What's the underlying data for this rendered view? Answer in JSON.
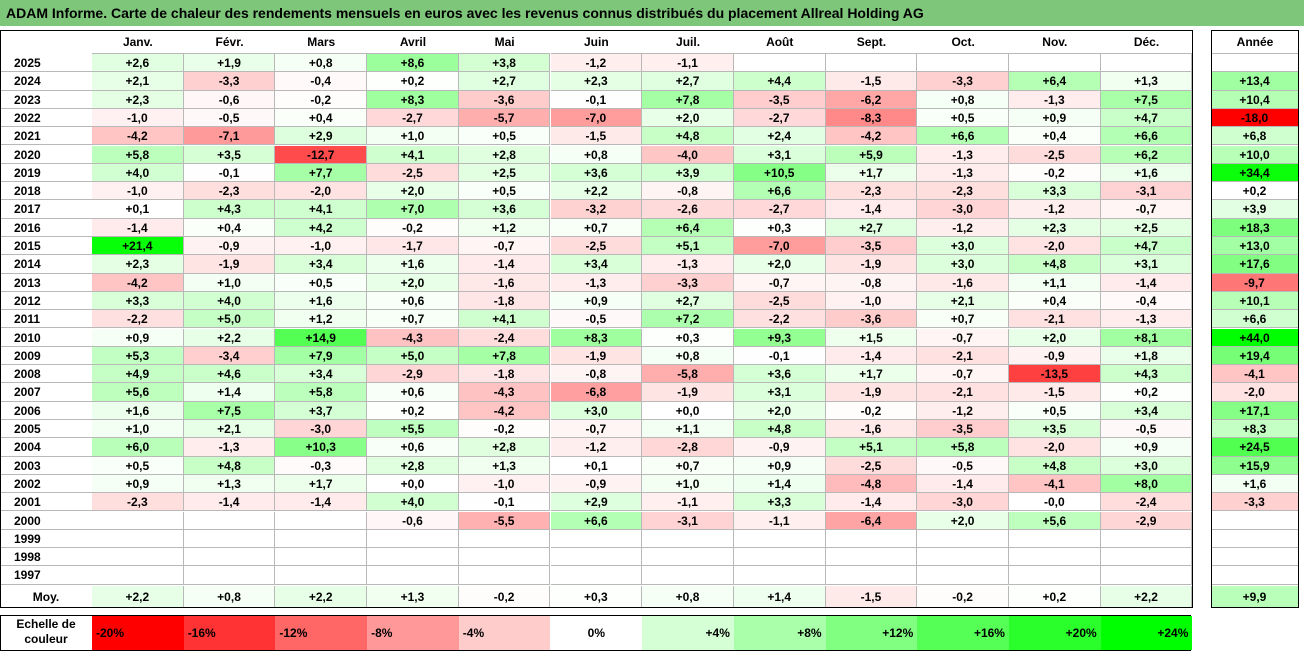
{
  "title": "ADAM Informe. Carte de chaleur des rendements mensuels en euros avec les revenus connus distribués du placement Allreal Holding AG",
  "months": [
    "Janv.",
    "Févr.",
    "Mars",
    "Avril",
    "Mai",
    "Juin",
    "Juil.",
    "Août",
    "Sept.",
    "Oct.",
    "Nov.",
    "Déc."
  ],
  "annual_header": "Année",
  "avg_label": "Moy.",
  "legend_label": "Echelle de couleur",
  "colors": {
    "negative_max": "#ff0000",
    "positive_max": "#00ff00",
    "neutral": "#ffffff",
    "title_bg": "#7dc67a"
  },
  "chart_data": {
    "type": "heatmap",
    "title": "ADAM Informe. Carte de chaleur des rendements mensuels en euros avec les revenus connus distribués du placement Allreal Holding AG",
    "x": [
      "Janv.",
      "Févr.",
      "Mars",
      "Avril",
      "Mai",
      "Juin",
      "Juil.",
      "Août",
      "Sept.",
      "Oct.",
      "Nov.",
      "Déc."
    ],
    "rows": [
      {
        "year": "2025",
        "values": [
          "+2,6",
          "+1,9",
          "+0,8",
          "+8,6",
          "+3,8",
          "-1,2",
          "-1,1",
          "",
          "",
          "",
          "",
          ""
        ],
        "annual": ""
      },
      {
        "year": "2024",
        "values": [
          "+2,1",
          "-3,3",
          "-0,4",
          "+0,2",
          "+2,7",
          "+2,3",
          "+2,7",
          "+4,4",
          "-1,5",
          "-3,3",
          "+6,4",
          "+1,3"
        ],
        "annual": "+13,4"
      },
      {
        "year": "2023",
        "values": [
          "+2,3",
          "-0,6",
          "-0,2",
          "+8,3",
          "-3,6",
          "-0,1",
          "+7,8",
          "-3,5",
          "-6,2",
          "+0,8",
          "-1,3",
          "+7,5"
        ],
        "annual": "+10,4"
      },
      {
        "year": "2022",
        "values": [
          "-1,0",
          "-0,5",
          "+0,4",
          "-2,7",
          "-5,7",
          "-7,0",
          "+2,0",
          "-2,7",
          "-8,3",
          "+0,5",
          "+0,9",
          "+4,7"
        ],
        "annual": "-18,0"
      },
      {
        "year": "2021",
        "values": [
          "-4,2",
          "-7,1",
          "+2,9",
          "+1,0",
          "+0,5",
          "-1,5",
          "+4,8",
          "+2,4",
          "-4,2",
          "+6,6",
          "+0,4",
          "+6,6"
        ],
        "annual": "+6,8"
      },
      {
        "year": "2020",
        "values": [
          "+5,8",
          "+3,5",
          "-12,7",
          "+4,1",
          "+2,8",
          "+0,8",
          "-4,0",
          "+3,1",
          "+5,9",
          "-1,3",
          "-2,5",
          "+6,2"
        ],
        "annual": "+10,0"
      },
      {
        "year": "2019",
        "values": [
          "+4,0",
          "-0,1",
          "+7,7",
          "-2,5",
          "+2,5",
          "+3,6",
          "+3,9",
          "+10,5",
          "+1,7",
          "-1,3",
          "-0,2",
          "+1,6"
        ],
        "annual": "+34,4"
      },
      {
        "year": "2018",
        "values": [
          "-1,0",
          "-2,3",
          "-2,0",
          "+2,0",
          "+0,5",
          "+2,2",
          "-0,8",
          "+6,6",
          "-2,3",
          "-2,3",
          "+3,3",
          "-3,1"
        ],
        "annual": "+0,2"
      },
      {
        "year": "2017",
        "values": [
          "+0,1",
          "+4,3",
          "+4,1",
          "+7,0",
          "+3,6",
          "-3,2",
          "-2,6",
          "-2,7",
          "-1,4",
          "-3,0",
          "-1,2",
          "-0,7"
        ],
        "annual": "+3,9"
      },
      {
        "year": "2016",
        "values": [
          "-1,4",
          "+0,4",
          "+4,2",
          "-0,2",
          "+1,2",
          "+0,7",
          "+6,4",
          "+0,3",
          "+2,7",
          "-1,2",
          "+2,3",
          "+2,5"
        ],
        "annual": "+18,3"
      },
      {
        "year": "2015",
        "values": [
          "+21,4",
          "-0,9",
          "-1,0",
          "-1,7",
          "-0,7",
          "-2,5",
          "+5,1",
          "-7,0",
          "-3,5",
          "+3,0",
          "-2,0",
          "+4,7"
        ],
        "annual": "+13,0"
      },
      {
        "year": "2014",
        "values": [
          "+2,3",
          "-1,9",
          "+3,4",
          "+1,6",
          "-1,4",
          "+3,4",
          "-1,3",
          "+2,0",
          "-1,9",
          "+3,0",
          "+4,8",
          "+3,1"
        ],
        "annual": "+17,6"
      },
      {
        "year": "2013",
        "values": [
          "-4,2",
          "+1,0",
          "+0,5",
          "+2,0",
          "-1,6",
          "-1,3",
          "-3,3",
          "-0,7",
          "-0,8",
          "-1,6",
          "+1,1",
          "-1,4"
        ],
        "annual": "-9,7"
      },
      {
        "year": "2012",
        "values": [
          "+3,3",
          "+4,0",
          "+1,6",
          "+0,6",
          "-1,8",
          "+0,9",
          "+2,7",
          "-2,5",
          "-1,0",
          "+2,1",
          "+0,4",
          "-0,4"
        ],
        "annual": "+10,1"
      },
      {
        "year": "2011",
        "values": [
          "-2,2",
          "+5,0",
          "+1,2",
          "+0,7",
          "+4,1",
          "-0,5",
          "+7,2",
          "-2,2",
          "-3,6",
          "+0,7",
          "-2,1",
          "-1,3"
        ],
        "annual": "+6,6"
      },
      {
        "year": "2010",
        "values": [
          "+0,9",
          "+2,2",
          "+14,9",
          "-4,3",
          "-2,4",
          "+8,3",
          "+0,3",
          "+9,3",
          "+1,5",
          "-0,7",
          "+2,0",
          "+8,1"
        ],
        "annual": "+44,0"
      },
      {
        "year": "2009",
        "values": [
          "+5,3",
          "-3,4",
          "+7,9",
          "+5,0",
          "+7,8",
          "-1,9",
          "+0,8",
          "-0,1",
          "-1,4",
          "-2,1",
          "-0,9",
          "+1,8"
        ],
        "annual": "+19,4"
      },
      {
        "year": "2008",
        "values": [
          "+4,9",
          "+4,6",
          "+3,4",
          "-2,9",
          "-1,8",
          "-0,8",
          "-5,8",
          "+3,6",
          "+1,7",
          "-0,7",
          "-13,5",
          "+4,3"
        ],
        "annual": "-4,1"
      },
      {
        "year": "2007",
        "values": [
          "+5,6",
          "+1,4",
          "+5,8",
          "+0,6",
          "-4,3",
          "-6,8",
          "-1,9",
          "+3,1",
          "-1,9",
          "-2,1",
          "-1,5",
          "+0,2"
        ],
        "annual": "-2,0"
      },
      {
        "year": "2006",
        "values": [
          "+1,6",
          "+7,5",
          "+3,7",
          "+0,2",
          "-4,2",
          "+3,0",
          "+0,0",
          "+2,0",
          "-0,2",
          "-1,2",
          "+0,5",
          "+3,4"
        ],
        "annual": "+17,1"
      },
      {
        "year": "2005",
        "values": [
          "+1,0",
          "+2,1",
          "-3,0",
          "+5,5",
          "-0,2",
          "-0,7",
          "+1,1",
          "+4,8",
          "-1,6",
          "-3,5",
          "+3,5",
          "-0,5"
        ],
        "annual": "+8,3"
      },
      {
        "year": "2004",
        "values": [
          "+6,0",
          "-1,3",
          "+10,3",
          "+0,6",
          "+2,8",
          "-1,2",
          "-2,8",
          "-0,9",
          "+5,1",
          "+5,8",
          "-2,0",
          "+0,9"
        ],
        "annual": "+24,5"
      },
      {
        "year": "2003",
        "values": [
          "+0,5",
          "+4,8",
          "-0,3",
          "+2,8",
          "+1,3",
          "+0,1",
          "+0,7",
          "+0,9",
          "-2,5",
          "-0,5",
          "+4,8",
          "+3,0"
        ],
        "annual": "+15,9"
      },
      {
        "year": "2002",
        "values": [
          "+0,9",
          "+1,3",
          "+1,7",
          "+0,0",
          "-1,0",
          "-0,9",
          "+1,0",
          "+1,4",
          "-4,8",
          "-1,4",
          "-4,1",
          "+8,0"
        ],
        "annual": "+1,6"
      },
      {
        "year": "2001",
        "values": [
          "-2,3",
          "-1,4",
          "-1,4",
          "+4,0",
          "-0,1",
          "+2,9",
          "-1,1",
          "+3,3",
          "-1,4",
          "-3,0",
          "-0,0",
          "-2,4"
        ],
        "annual": "-3,3"
      },
      {
        "year": "2000",
        "values": [
          "",
          "",
          "",
          "-0,6",
          "-5,5",
          "+6,6",
          "-3,1",
          "-1,1",
          "-6,4",
          "+2,0",
          "+5,6",
          "-2,9"
        ],
        "annual": ""
      },
      {
        "year": "1999",
        "values": [
          "",
          "",
          "",
          "",
          "",
          "",
          "",
          "",
          "",
          "",
          "",
          ""
        ],
        "annual": ""
      },
      {
        "year": "1998",
        "values": [
          "",
          "",
          "",
          "",
          "",
          "",
          "",
          "",
          "",
          "",
          "",
          ""
        ],
        "annual": ""
      },
      {
        "year": "1997",
        "values": [
          "",
          "",
          "",
          "",
          "",
          "",
          "",
          "",
          "",
          "",
          "",
          ""
        ],
        "annual": ""
      }
    ],
    "averages": [
      "+2,2",
      "+0,8",
      "+2,2",
      "+1,3",
      "-0,2",
      "+0,3",
      "+0,8",
      "+1,4",
      "-1,5",
      "-0,2",
      "+0,2",
      "+2,2"
    ],
    "annual_average": "+9,9",
    "color_scale": [
      "-20%",
      "-16%",
      "-12%",
      "-8%",
      "-4%",
      "0%",
      "+4%",
      "+8%",
      "+12%",
      "+16%",
      "+20%",
      "+24%"
    ]
  }
}
